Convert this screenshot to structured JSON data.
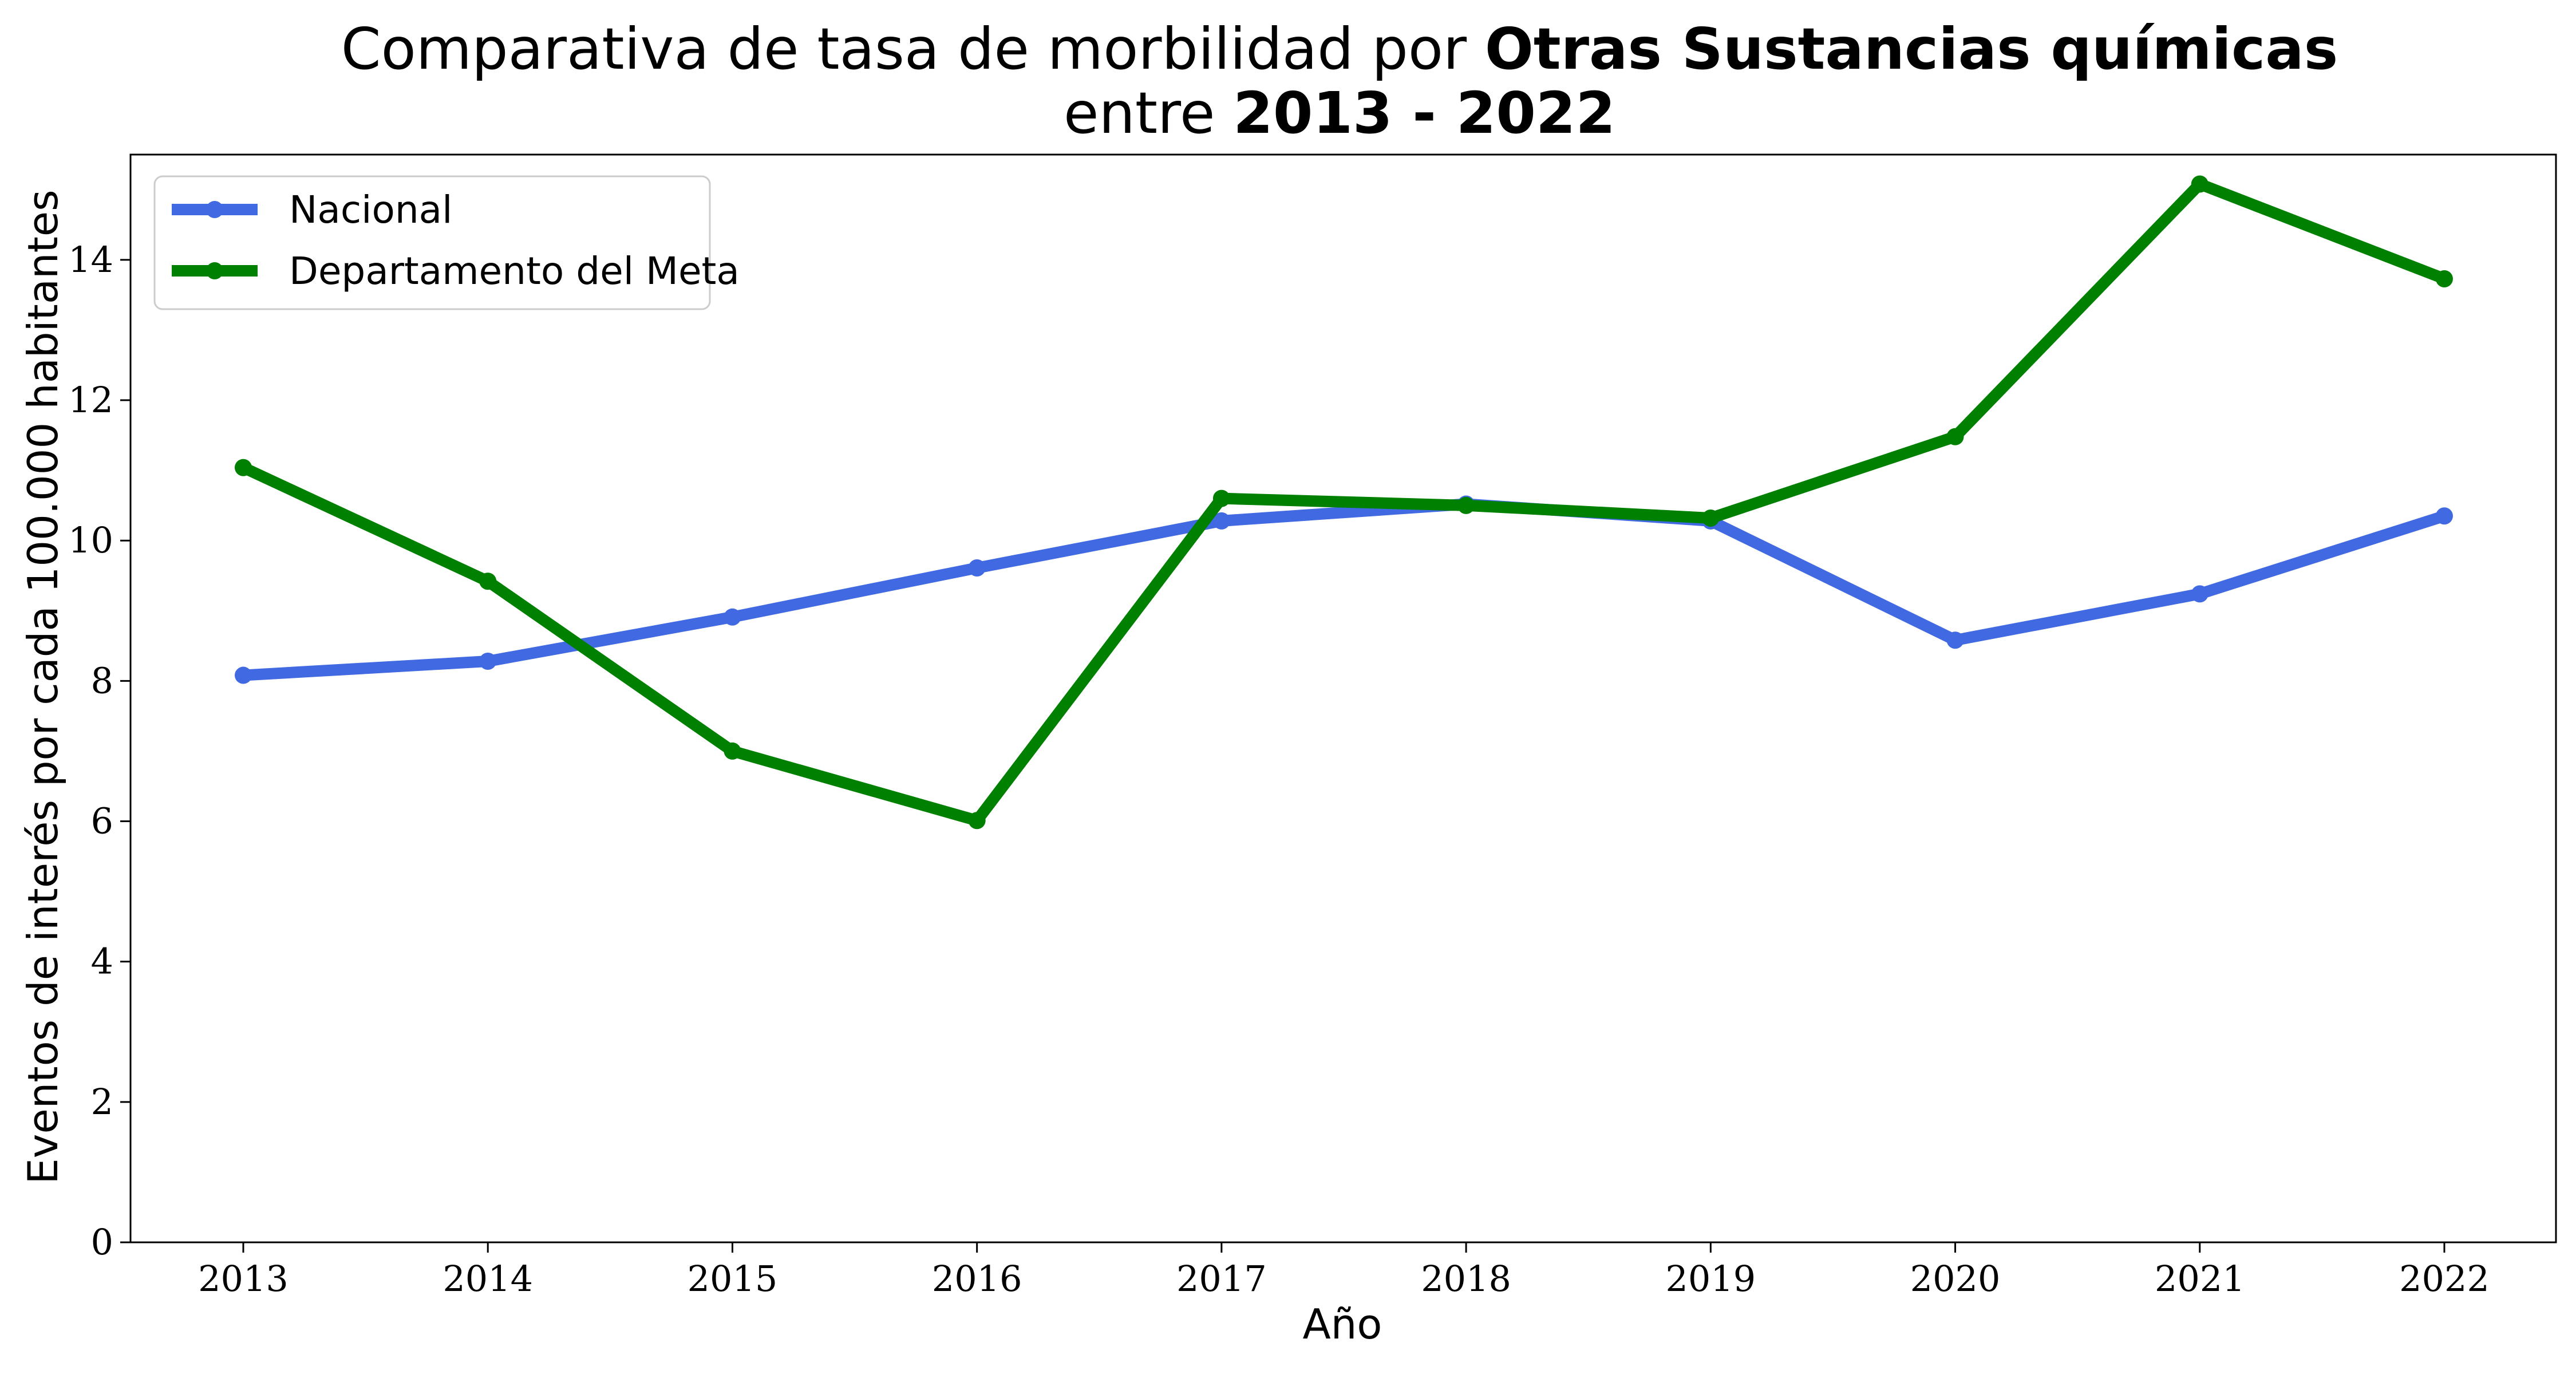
{
  "title": {
    "line1_prefix": "Comparativa de tasa de morbilidad por ",
    "line1_bold": "Otras Sustancias químicas",
    "line2_prefix": "entre ",
    "line2_bold": "2013 - 2022"
  },
  "chart_data": {
    "type": "line",
    "xlabel": "Año",
    "ylabel": "Eventos de interés por cada 100.000 habitantes",
    "x": [
      "2013",
      "2014",
      "2015",
      "2016",
      "2017",
      "2018",
      "2019",
      "2020",
      "2021",
      "2022"
    ],
    "ylim": [
      0,
      15.5
    ],
    "yticks": [
      0,
      2,
      4,
      6,
      8,
      10,
      12,
      14
    ],
    "grid": false,
    "legend_position": "top-left",
    "series": [
      {
        "name": "Nacional",
        "color": "#4169e1",
        "values": [
          8.08,
          8.28,
          8.91,
          9.61,
          10.28,
          10.52,
          10.28,
          8.58,
          9.24,
          10.35
        ]
      },
      {
        "name": "Departamento del Meta",
        "color": "#008000",
        "values": [
          11.04,
          9.42,
          7.0,
          6.01,
          10.6,
          10.5,
          10.32,
          11.48,
          15.08,
          13.73
        ]
      }
    ]
  }
}
